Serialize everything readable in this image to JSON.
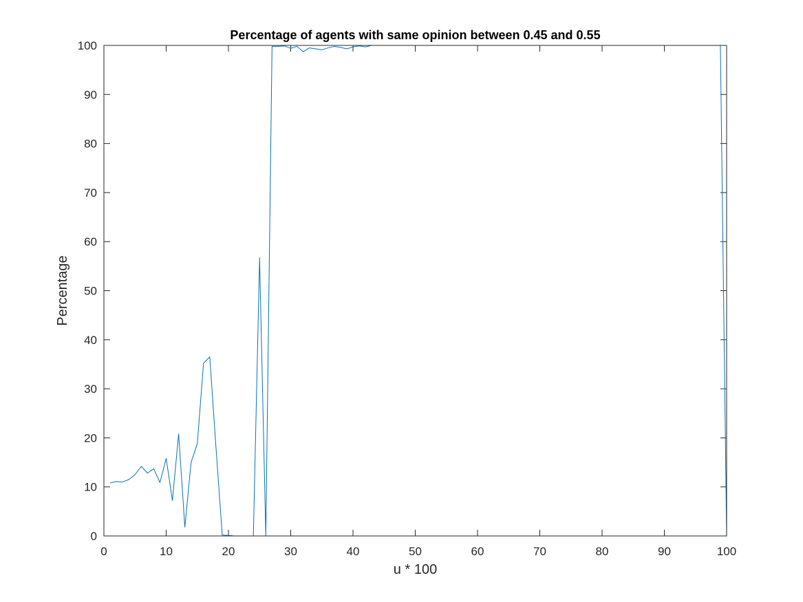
{
  "chart_data": {
    "type": "line",
    "title": "Percentage of agents with same opinion between 0.45 and 0.55",
    "xlabel": "u * 100",
    "ylabel": "Percentage",
    "xlim": [
      0,
      100
    ],
    "ylim": [
      0,
      100
    ],
    "xticks": [
      "0",
      "10",
      "20",
      "30",
      "40",
      "50",
      "60",
      "70",
      "80",
      "90",
      "100"
    ],
    "yticks": [
      "0",
      "10",
      "20",
      "30",
      "40",
      "50",
      "60",
      "70",
      "80",
      "90",
      "100"
    ],
    "grid": false,
    "box": true,
    "line_color": "#0072BD",
    "series": [
      {
        "x": [
          1,
          2,
          3,
          4,
          5,
          6,
          7,
          8,
          9,
          10,
          11,
          12,
          13,
          14,
          15,
          16,
          17,
          18,
          19,
          20,
          21,
          22,
          23,
          24,
          25,
          26,
          27,
          28,
          29,
          30,
          31,
          32,
          33,
          34,
          35,
          36,
          37,
          38,
          39,
          40,
          41,
          42,
          43,
          44,
          45,
          46,
          47,
          48,
          49,
          50,
          51,
          52,
          53,
          54,
          55,
          56,
          57,
          58,
          59,
          60,
          61,
          62,
          63,
          64,
          65,
          66,
          67,
          68,
          69,
          70,
          71,
          72,
          73,
          74,
          75,
          76,
          77,
          78,
          79,
          80,
          81,
          82,
          83,
          84,
          85,
          86,
          87,
          88,
          89,
          90,
          91,
          92,
          93,
          94,
          95,
          96,
          97,
          98,
          99,
          100
        ],
        "y": [
          10.8,
          11.1,
          11.0,
          11.5,
          12.5,
          14.2,
          12.8,
          13.7,
          10.9,
          15.8,
          7.2,
          20.8,
          1.8,
          15.0,
          18.8,
          35.2,
          36.5,
          18.0,
          0.2,
          0.1,
          0.0,
          0.0,
          0.0,
          0.0,
          56.7,
          0.0,
          99.8,
          99.8,
          99.9,
          99.4,
          99.8,
          98.7,
          99.5,
          99.3,
          99.1,
          99.5,
          99.8,
          99.6,
          99.3,
          99.7,
          99.9,
          99.7,
          100,
          100,
          100,
          100,
          100,
          100,
          100,
          100,
          100,
          100,
          100,
          100,
          100,
          100,
          100,
          100,
          100,
          100,
          100,
          100,
          100,
          100,
          100,
          100,
          100,
          100,
          100,
          100,
          100,
          100,
          100,
          100,
          100,
          100,
          100,
          100,
          100,
          100,
          100,
          100,
          100,
          100,
          100,
          100,
          100,
          100,
          100,
          100,
          100,
          100,
          100,
          100,
          100,
          100,
          100,
          100,
          100,
          0.0
        ]
      }
    ]
  }
}
